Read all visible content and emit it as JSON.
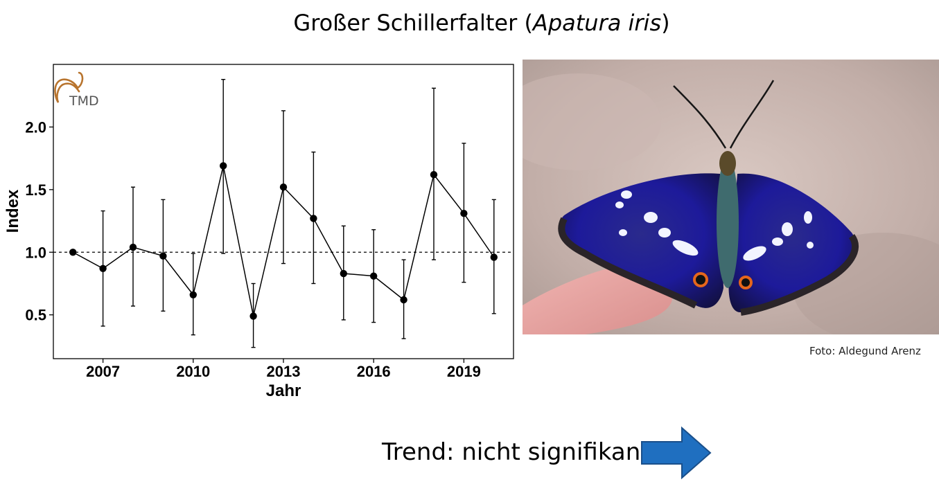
{
  "title": {
    "main": "Großer Schillerfalter (",
    "italic": "Apatura iris",
    "close": ")"
  },
  "logo_text": "TMD",
  "chart_data": {
    "type": "line",
    "xlabel": "Jahr",
    "ylabel": "Index",
    "xticks": [
      2007,
      2010,
      2013,
      2016,
      2019
    ],
    "yticks": [
      0.5,
      1.0,
      1.5,
      2.0
    ],
    "ytick_labels": [
      "0.5",
      "1.0",
      "1.5",
      "2.0"
    ],
    "xlim": [
      2005.35,
      2020.65
    ],
    "ylim": [
      0.15,
      2.5
    ],
    "reference_line": 1.0,
    "grid": false,
    "points": [
      {
        "x": 2006,
        "y": 1.0,
        "lo": null,
        "hi": null
      },
      {
        "x": 2007,
        "y": 0.87,
        "lo": 0.41,
        "hi": 1.33
      },
      {
        "x": 2008,
        "y": 1.04,
        "lo": 0.57,
        "hi": 1.52
      },
      {
        "x": 2009,
        "y": 0.97,
        "lo": 0.53,
        "hi": 1.42
      },
      {
        "x": 2010,
        "y": 0.66,
        "lo": 0.34,
        "hi": 0.99
      },
      {
        "x": 2011,
        "y": 1.69,
        "lo": 0.99,
        "hi": 2.38
      },
      {
        "x": 2012,
        "y": 0.49,
        "lo": 0.24,
        "hi": 0.75
      },
      {
        "x": 2013,
        "y": 1.52,
        "lo": 0.91,
        "hi": 2.13
      },
      {
        "x": 2014,
        "y": 1.27,
        "lo": 0.75,
        "hi": 1.8
      },
      {
        "x": 2015,
        "y": 0.83,
        "lo": 0.46,
        "hi": 1.21
      },
      {
        "x": 2016,
        "y": 0.81,
        "lo": 0.44,
        "hi": 1.18
      },
      {
        "x": 2017,
        "y": 0.62,
        "lo": 0.31,
        "hi": 0.94
      },
      {
        "x": 2018,
        "y": 1.62,
        "lo": 0.94,
        "hi": 2.31
      },
      {
        "x": 2019,
        "y": 1.31,
        "lo": 0.76,
        "hi": 1.87
      },
      {
        "x": 2020,
        "y": 0.96,
        "lo": 0.51,
        "hi": 1.42
      }
    ]
  },
  "photo": {
    "credit": "Foto: Aldegund Arenz"
  },
  "trend": {
    "label": "Trend: nicht signifikant",
    "arrow_color": "#1f6fc0"
  }
}
